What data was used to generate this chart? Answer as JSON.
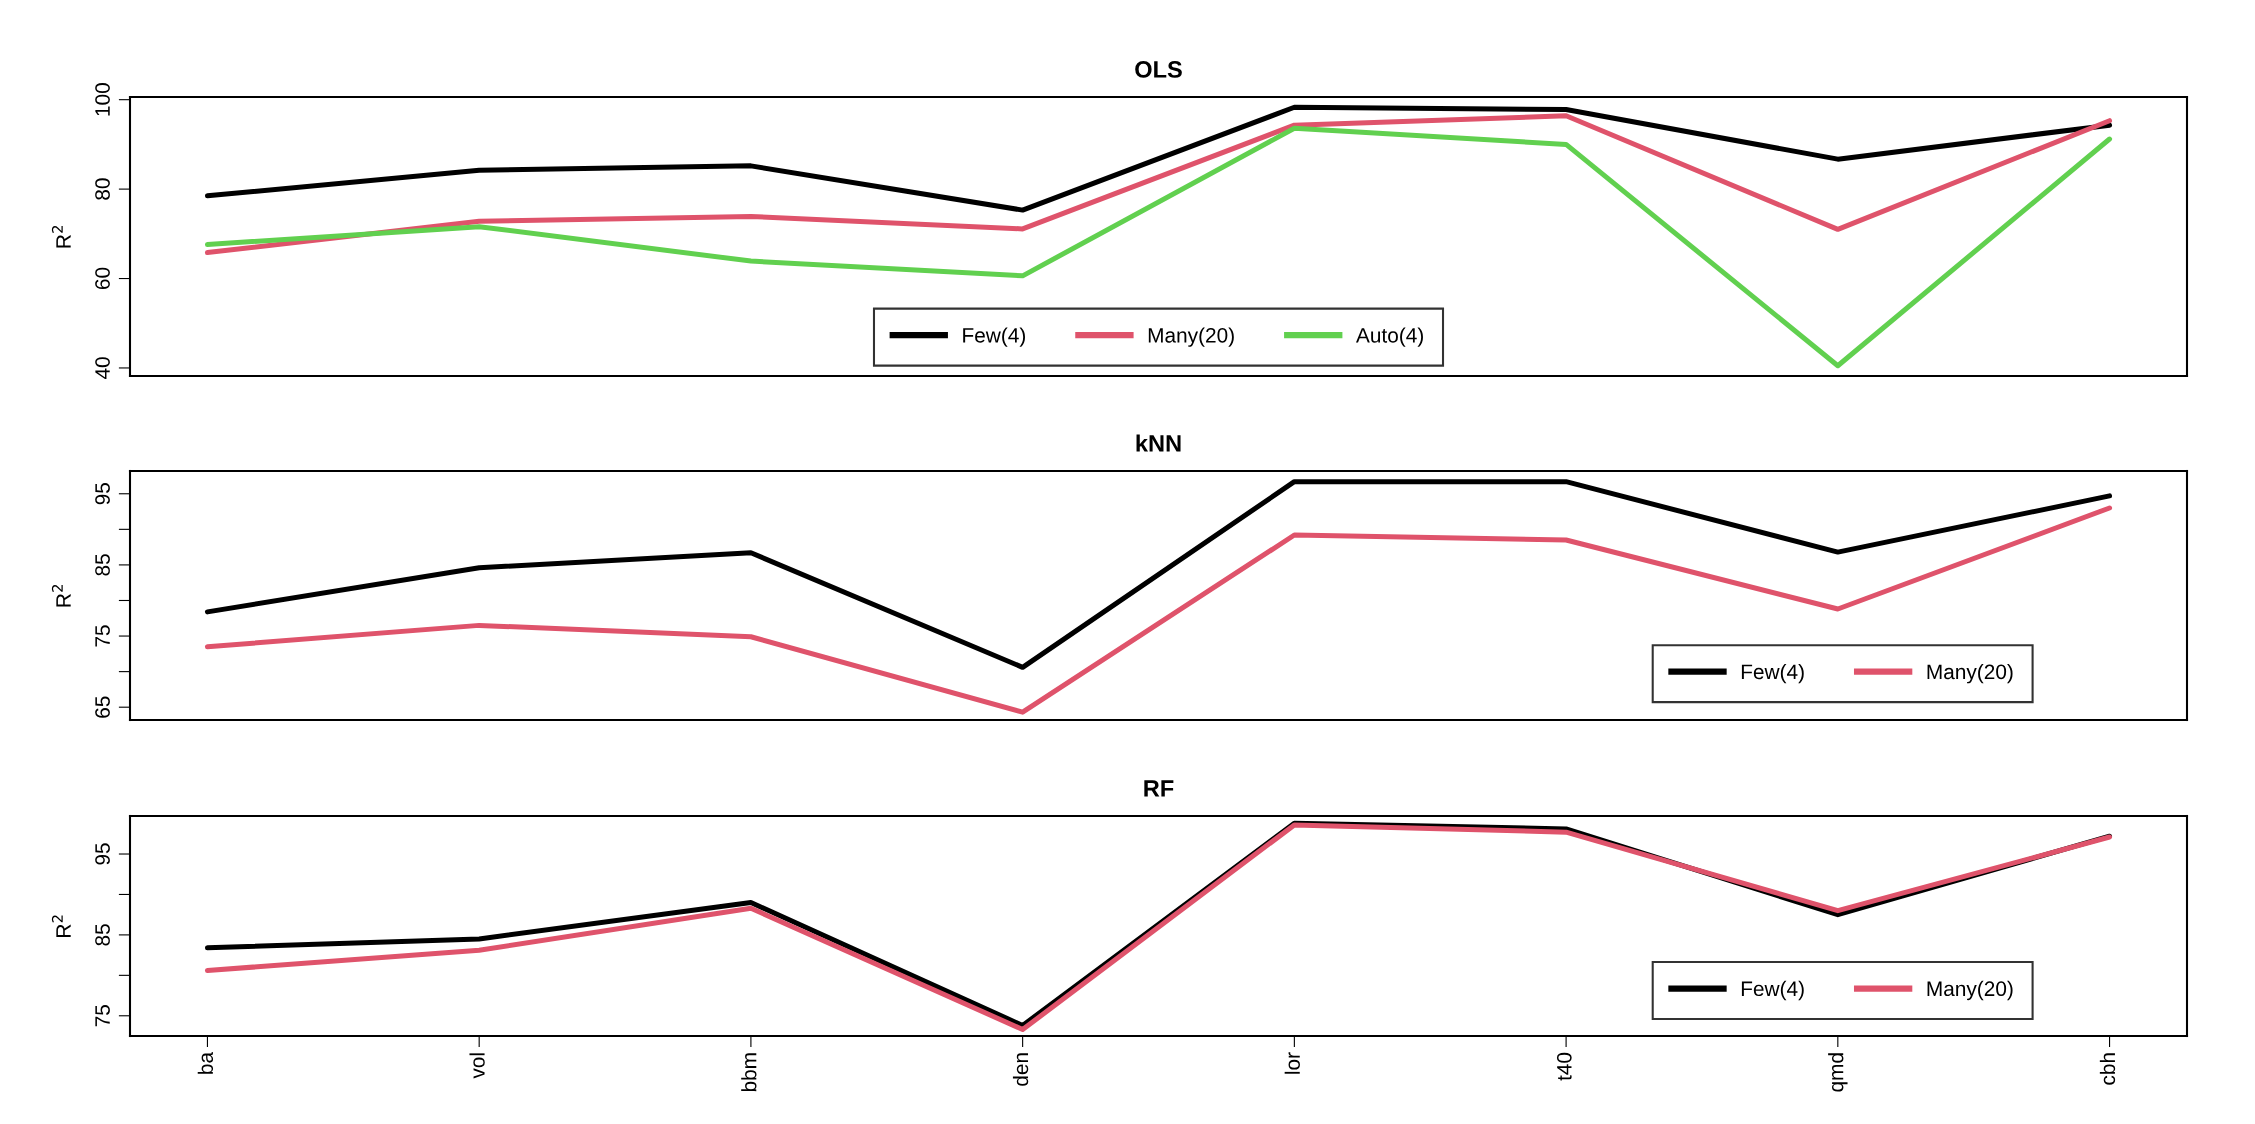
{
  "chart_data": [
    {
      "type": "line",
      "title": "OLS",
      "ylabel": "R$^{2}$",
      "categories": [
        null,
        null,
        null,
        null,
        null,
        null,
        null,
        null
      ],
      "ylim": [
        38.2,
        100.6
      ],
      "yticks": [
        40,
        60,
        80,
        100
      ],
      "tick_labels": "y",
      "legend": "bottom",
      "grid": false,
      "series": [
        {
          "name": "Few(4)",
          "color": "#000000",
          "values": [
            78.5,
            84.2,
            85.2,
            75.3,
            98.3,
            97.8,
            86.7,
            94.3
          ]
        },
        {
          "name": "Many(20)",
          "color": "#df536b",
          "values": [
            65.8,
            72.8,
            73.9,
            71.1,
            94.3,
            96.4,
            71.0,
            95.3
          ]
        },
        {
          "name": "Auto(4)",
          "color": "#61d04f",
          "values": [
            67.6,
            71.6,
            63.9,
            60.6,
            93.6,
            90.0,
            40.5,
            91.2
          ]
        }
      ]
    },
    {
      "type": "line",
      "title": "kNN",
      "ylabel": "R$^{2}$",
      "categories": [
        null,
        null,
        null,
        null,
        null,
        null,
        null,
        null
      ],
      "ylim": [
        63.2,
        98.2
      ],
      "yticks": [
        65,
        {
          "value": 70,
          "label": null
        },
        75,
        {
          "value": 80,
          "label": null
        },
        85,
        {
          "value": 90,
          "label": null
        },
        95
      ],
      "tick_labels": "y",
      "legend": "bottom right",
      "grid": false,
      "series": [
        {
          "name": "Few(4)",
          "color": "#000000",
          "values": [
            78.4,
            84.6,
            86.7,
            70.6,
            96.7,
            96.7,
            86.8,
            94.7
          ]
        },
        {
          "name": "Many(20)",
          "color": "#df536b",
          "values": [
            73.5,
            76.5,
            74.9,
            64.3,
            89.2,
            88.5,
            78.8,
            93.0
          ]
        }
      ]
    },
    {
      "type": "line",
      "title": "RF",
      "ylabel": "R$^{2}$",
      "categories": [
        "ba",
        "vol",
        "bbm",
        "den",
        "lor",
        "t40",
        "qmd",
        "cbh"
      ],
      "ylim": [
        72.5,
        99.7
      ],
      "yticks": [
        75,
        {
          "value": 80,
          "label": null
        },
        85,
        {
          "value": 90,
          "label": null
        },
        95
      ],
      "legend": "bottom right",
      "grid": false,
      "series": [
        {
          "name": "Few(4)",
          "color": "#000000",
          "values": [
            83.4,
            84.5,
            89.0,
            73.8,
            98.8,
            98.1,
            87.5,
            97.2
          ]
        },
        {
          "name": "Many(20)",
          "color": "#df536b",
          "values": [
            80.6,
            83.1,
            88.3,
            73.3,
            98.6,
            97.7,
            88.0,
            97.1
          ]
        }
      ]
    }
  ]
}
